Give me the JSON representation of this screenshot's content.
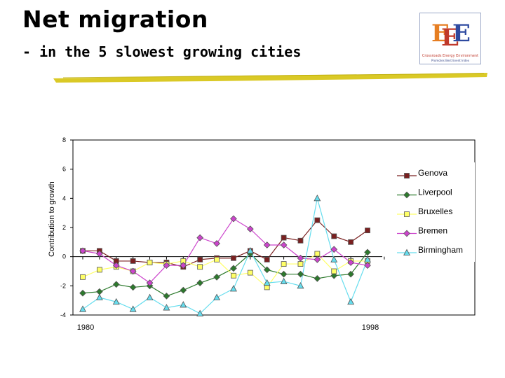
{
  "slide": {
    "title": "Net migration",
    "subtitle": "- in the 5 slowest growing cities",
    "logo_text": "Crossroads Energy Environment",
    "logo_subtext": "Promotes Best Event Index"
  },
  "colors": {
    "Genova": "#7a2020",
    "Liverpool": "#2c7a2c",
    "Bruxelles": "#ffff66",
    "Bremen": "#cc44cc",
    "Birmingham": "#66ddee",
    "highlight": "#d4c000"
  },
  "chart_data": {
    "type": "line",
    "title": "",
    "xlabel": "",
    "ylabel": "Contribution to growth",
    "ylim": [
      -4,
      8
    ],
    "yticks": [
      -4,
      -2,
      0,
      2,
      4,
      6,
      8
    ],
    "x": [
      1980,
      1981,
      1982,
      1983,
      1984,
      1985,
      1986,
      1987,
      1988,
      1989,
      1990,
      1991,
      1992,
      1993,
      1994,
      1995,
      1996,
      1997,
      1998
    ],
    "xtick_labels": [
      "1980",
      "1998"
    ],
    "grid": false,
    "legend": "right",
    "series": [
      {
        "name": "Genova",
        "marker": "square",
        "values": [
          0.4,
          0.4,
          -0.3,
          -0.3,
          -0.4,
          -0.4,
          -0.7,
          -0.2,
          -0.1,
          -0.1,
          0.4,
          -0.2,
          1.3,
          1.1,
          2.5,
          1.4,
          1.0,
          1.8,
          null
        ]
      },
      {
        "name": "Liverpool",
        "marker": "diamond",
        "values": [
          -2.5,
          -2.4,
          -1.9,
          -2.1,
          -2.0,
          -2.7,
          -2.3,
          -1.8,
          -1.4,
          -0.8,
          0.2,
          -0.9,
          -1.2,
          -1.2,
          -1.5,
          -1.3,
          -1.2,
          0.3,
          null
        ]
      },
      {
        "name": "Bruxelles",
        "marker": "square",
        "values": [
          -1.4,
          -0.9,
          -0.7,
          -1.0,
          -0.4,
          -0.5,
          -0.3,
          -0.7,
          -0.2,
          -1.3,
          -1.1,
          -2.1,
          -0.5,
          -0.5,
          0.2,
          -1.0,
          -0.3,
          -0.3,
          null
        ]
      },
      {
        "name": "Bremen",
        "marker": "diamond",
        "values": [
          0.4,
          0.2,
          -0.6,
          -1.0,
          -1.8,
          -0.6,
          -0.6,
          1.3,
          0.9,
          2.6,
          1.9,
          0.8,
          0.8,
          -0.1,
          -0.2,
          0.5,
          -0.4,
          -0.6,
          null
        ]
      },
      {
        "name": "Birmingham",
        "marker": "triangle",
        "values": [
          -3.6,
          -2.8,
          -3.1,
          -3.6,
          -2.8,
          -3.5,
          -3.3,
          -3.9,
          -2.8,
          -2.2,
          0.4,
          -1.8,
          -1.7,
          -2.0,
          4.0,
          -0.2,
          -3.1,
          -0.2,
          null
        ]
      }
    ]
  }
}
